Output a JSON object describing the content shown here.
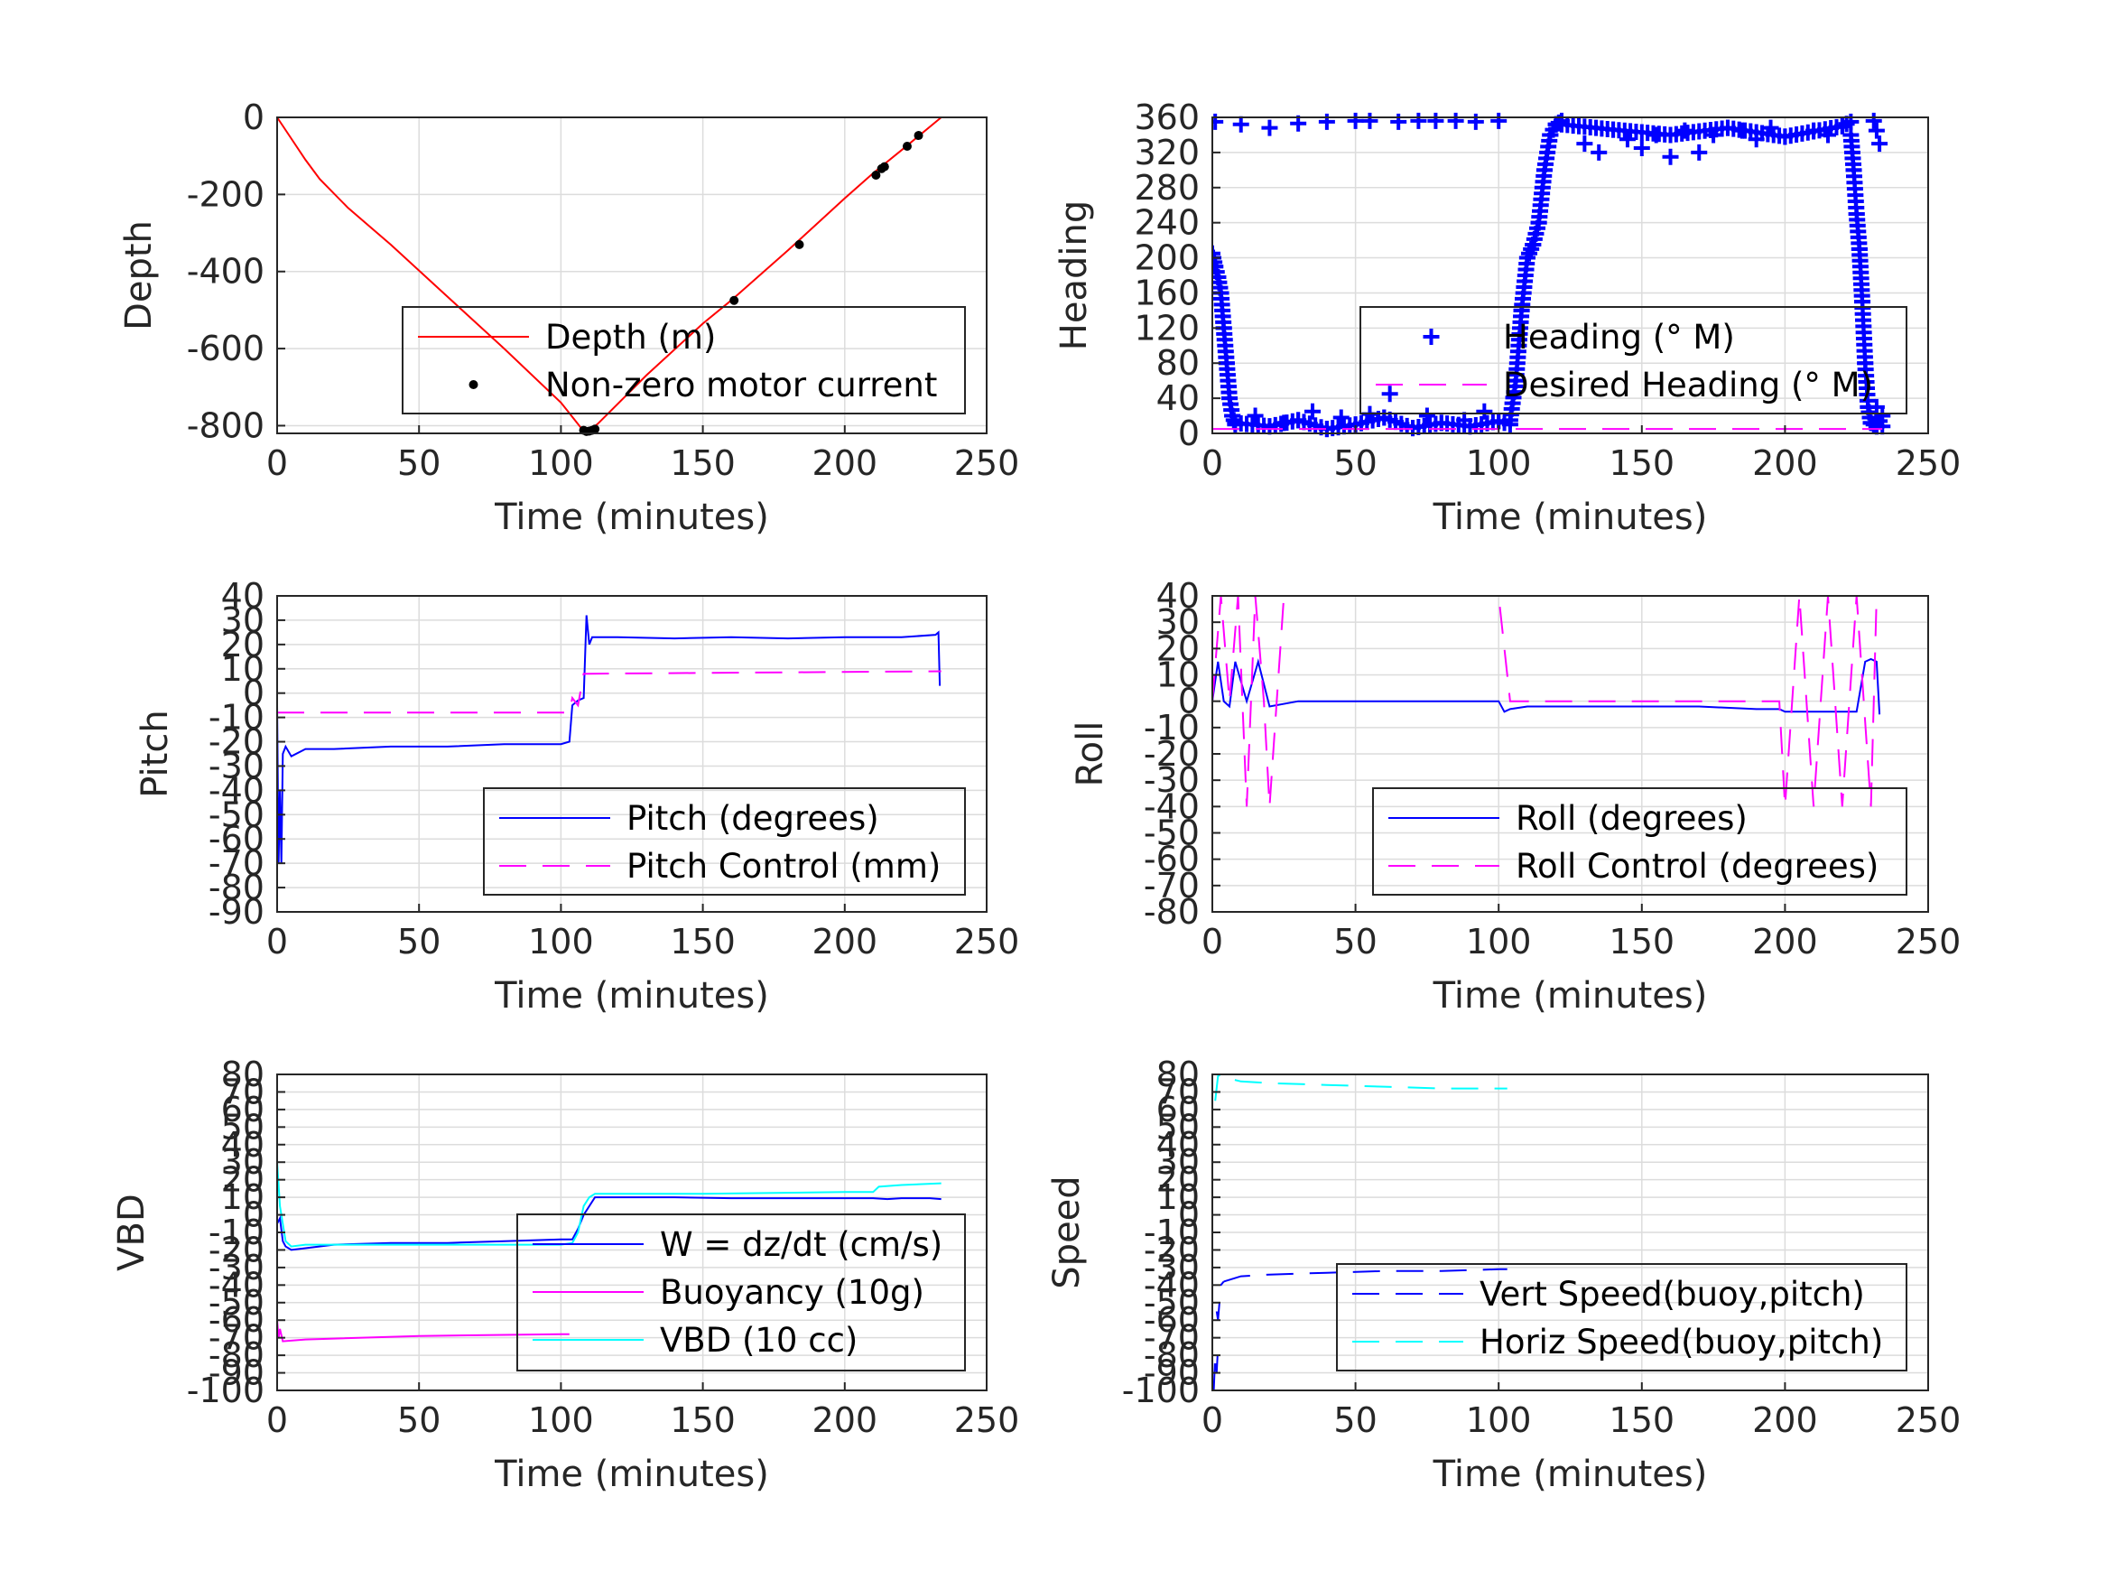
{
  "chart_data": [
    {
      "type": "line",
      "xlabel": "Time (minutes)",
      "ylabel": "Depth",
      "xlim": [
        0,
        250
      ],
      "ylim": [
        -820,
        0
      ],
      "xticks": [
        0,
        50,
        100,
        150,
        200,
        250
      ],
      "yticks": [
        0,
        -200,
        -400,
        -600,
        -800
      ],
      "grid": true,
      "legend_position": "lower-right",
      "series": [
        {
          "name": "Depth (m)",
          "style": "line",
          "color": "#ff0000",
          "x": [
            0,
            5,
            10,
            15,
            25,
            40,
            60,
            80,
            100,
            107,
            110,
            113,
            130,
            150,
            160,
            180,
            200,
            210,
            220,
            234
          ],
          "y": [
            0,
            -55,
            -110,
            -160,
            -235,
            -330,
            -465,
            -600,
            -740,
            -805,
            -815,
            -795,
            -670,
            -535,
            -475,
            -345,
            -210,
            -145,
            -85,
            0
          ]
        },
        {
          "name": "Non-zero motor current",
          "style": "dots",
          "color": "#000000",
          "x": [
            108,
            109,
            110,
            111,
            112,
            161,
            184,
            211,
            213,
            214,
            222,
            226
          ],
          "y": [
            -812,
            -815,
            -814,
            -812,
            -809,
            -475,
            -330,
            -150,
            -133,
            -128,
            -75,
            -47
          ]
        }
      ]
    },
    {
      "type": "scatter",
      "xlabel": "Time (minutes)",
      "ylabel": "Heading",
      "xlim": [
        0,
        250
      ],
      "ylim": [
        0,
        360
      ],
      "xticks": [
        0,
        50,
        100,
        150,
        200,
        250
      ],
      "yticks": [
        0,
        40,
        80,
        120,
        160,
        200,
        240,
        280,
        320,
        360
      ],
      "grid": true,
      "legend_position": "lower-right",
      "series": [
        {
          "name": "Heading (° M)",
          "style": "plus",
          "color": "#0000ff",
          "segments": [
            {
              "x": [
                0,
                1,
                2,
                3,
                4,
                5,
                6,
                7,
                8
              ],
              "y": [
                205,
                190,
                178,
                160,
                120,
                80,
                40,
                20,
                10
              ]
            },
            {
              "x": [
                8,
                20,
                30,
                40,
                50,
                60,
                70,
                80,
                90,
                100,
                104
              ],
              "y": [
                12,
                8,
                15,
                5,
                10,
                18,
                6,
                12,
                8,
                14,
                10
              ]
            },
            {
              "x": [
                104,
                106,
                108,
                110,
                112,
                114,
                116,
                118,
                120,
                122
              ],
              "y": [
                15,
                60,
                140,
                200,
                215,
                240,
                300,
                340,
                352,
                356
              ]
            },
            {
              "x": [
                122,
                140,
                160,
                180,
                200,
                220,
                223
              ],
              "y": [
                352,
                346,
                340,
                348,
                338,
                350,
                355
              ]
            },
            {
              "x": [
                223,
                224,
                225,
                226,
                227,
                228,
                229,
                230
              ],
              "y": [
                340,
                300,
                250,
                210,
                150,
                80,
                30,
                12
              ]
            },
            {
              "x": [
                230,
                232,
                234
              ],
              "y": [
                12,
                8,
                20
              ]
            }
          ],
          "points": [
            {
              "x": [
                1,
                10,
                20,
                30,
                40,
                50,
                55,
                65,
                72,
                78,
                85,
                92,
                100
              ],
              "y": [
                355,
                352,
                348,
                353,
                355,
                356,
                356,
                355,
                356,
                356,
                356,
                355,
                356
              ]
            },
            {
              "x": [
                130,
                135,
                145,
                150,
                155,
                160,
                165,
                170,
                175,
                185,
                190,
                195,
                210,
                215,
                231,
                232,
                233
              ],
              "y": [
                330,
                320,
                335,
                325,
                340,
                315,
                345,
                320,
                340,
                345,
                335,
                348,
                345,
                340,
                356,
                345,
                330
              ]
            },
            {
              "x": [
                15,
                25,
                35,
                45,
                55,
                62,
                75,
                88,
                95,
                232,
                234
              ],
              "y": [
                20,
                12,
                25,
                18,
                22,
                45,
                20,
                15,
                25,
                30,
                8
              ]
            }
          ]
        },
        {
          "name": "Desired Heading (° M)",
          "style": "dashed",
          "color": "#ff00ff",
          "x": [
            0,
            234
          ],
          "y": [
            5,
            5
          ]
        }
      ]
    },
    {
      "type": "line",
      "xlabel": "Time (minutes)",
      "ylabel": "Pitch",
      "xlim": [
        0,
        250
      ],
      "ylim": [
        -90,
        40
      ],
      "xticks": [
        0,
        50,
        100,
        150,
        200,
        250
      ],
      "yticks": [
        40,
        30,
        20,
        10,
        0,
        -10,
        -20,
        -30,
        -40,
        -50,
        -60,
        -70,
        -80,
        -90
      ],
      "grid": true,
      "legend_position": "lower-right",
      "series": [
        {
          "name": "Pitch (degrees)",
          "style": "line",
          "color": "#0000ff",
          "x": [
            0,
            0.5,
            1,
            1.5,
            2,
            3,
            5,
            10,
            20,
            40,
            60,
            80,
            100,
            103,
            104,
            106,
            108,
            109,
            110,
            111,
            120,
            140,
            160,
            180,
            200,
            220,
            232,
            233,
            233.5
          ],
          "y": [
            -5,
            -70,
            -40,
            -70,
            -25,
            -22,
            -26,
            -23,
            -23,
            -22,
            -22,
            -21,
            -21,
            -20,
            -5,
            -3,
            -2,
            32,
            20,
            23,
            23,
            22.5,
            23,
            22.5,
            23,
            23,
            24,
            25,
            3
          ]
        },
        {
          "name": "Pitch Control (mm)",
          "style": "dashed",
          "color": "#ff00ff",
          "x": [
            0,
            103,
            104,
            106,
            108,
            110,
            234
          ],
          "y": [
            -8,
            -8,
            -2,
            -5,
            8,
            8,
            9
          ]
        }
      ]
    },
    {
      "type": "line",
      "xlabel": "Time (minutes)",
      "ylabel": "Roll",
      "xlim": [
        0,
        250
      ],
      "ylim": [
        -80,
        40
      ],
      "xticks": [
        0,
        50,
        100,
        150,
        200,
        250
      ],
      "yticks": [
        40,
        30,
        20,
        10,
        0,
        -10,
        -20,
        -30,
        -40,
        -50,
        -60,
        -70,
        -80
      ],
      "grid": true,
      "legend_position": "lower-right",
      "series": [
        {
          "name": "Roll (degrees)",
          "style": "line",
          "color": "#0000ff",
          "x": [
            0,
            2,
            4,
            6,
            8,
            12,
            16,
            20,
            30,
            50,
            80,
            100,
            102,
            104,
            110,
            130,
            150,
            170,
            190,
            198,
            200,
            210,
            220,
            225,
            228,
            230,
            232,
            233
          ],
          "y": [
            0,
            15,
            0,
            -2,
            15,
            0,
            15,
            -2,
            0,
            0,
            0,
            0,
            -4,
            -3,
            -2,
            -2,
            -2,
            -2,
            -3,
            -3,
            -4,
            -4,
            -4,
            -4,
            15,
            16,
            15,
            -5
          ]
        },
        {
          "name": "Roll Control (degrees)",
          "style": "dashed",
          "color": "#ff00ff",
          "x": [
            0,
            3,
            6,
            9,
            12,
            15,
            18,
            20,
            25,
            40,
            60,
            80,
            100,
            104,
            150,
            198,
            200,
            205,
            210,
            215,
            220,
            225,
            230,
            232
          ],
          "y": [
            0,
            40,
            0,
            40,
            -40,
            40,
            0,
            -40,
            40,
            40,
            40,
            40,
            40,
            0,
            0,
            0,
            -40,
            40,
            -40,
            40,
            -40,
            40,
            -40,
            40
          ]
        }
      ]
    },
    {
      "type": "line",
      "xlabel": "Time (minutes)",
      "ylabel": "VBD",
      "xlim": [
        0,
        250
      ],
      "ylim": [
        -100,
        80
      ],
      "xticks": [
        0,
        50,
        100,
        150,
        200,
        250
      ],
      "yticks": [
        80,
        70,
        60,
        50,
        40,
        30,
        20,
        10,
        0,
        -10,
        -20,
        -30,
        -40,
        -50,
        -60,
        -70,
        -80,
        -90,
        -100
      ],
      "grid": true,
      "legend_position": "lower-right",
      "series": [
        {
          "name": "W = dz/dt (cm/s)",
          "style": "line",
          "color": "#0000ff",
          "x": [
            0,
            1,
            2,
            3,
            5,
            10,
            20,
            40,
            60,
            80,
            100,
            104,
            106,
            108,
            112,
            120,
            140,
            160,
            180,
            200,
            210,
            215,
            220,
            230,
            234
          ],
          "y": [
            -5,
            -2,
            -15,
            -18,
            -20,
            -19,
            -17,
            -16,
            -16,
            -15,
            -14,
            -14,
            -8,
            0,
            10,
            10,
            10,
            9.5,
            9.5,
            9.5,
            9.5,
            9,
            9.5,
            9.5,
            9
          ]
        },
        {
          "name": "Buoyancy (10g)",
          "style": "line",
          "color": "#ff00ff",
          "x": [
            0,
            0.5,
            1,
            2,
            10,
            50,
            100,
            103
          ],
          "y": [
            -60,
            -70,
            -65,
            -72,
            -71,
            -69,
            -68,
            -68
          ]
        },
        {
          "name": "VBD (10 cc)",
          "style": "line",
          "color": "#00ffff",
          "x": [
            0,
            1,
            3,
            5,
            10,
            50,
            100,
            104,
            106,
            108,
            110,
            112,
            150,
            200,
            210,
            212,
            220,
            234
          ],
          "y": [
            30,
            5,
            -15,
            -18,
            -17,
            -17,
            -17,
            -16,
            -10,
            5,
            10,
            12,
            12,
            13,
            13,
            16,
            17,
            18
          ]
        }
      ]
    },
    {
      "type": "line",
      "xlabel": "Time (minutes)",
      "ylabel": "Speed",
      "xlim": [
        0,
        250
      ],
      "ylim": [
        -100,
        80
      ],
      "xticks": [
        0,
        50,
        100,
        150,
        200,
        250
      ],
      "yticks": [
        80,
        70,
        60,
        50,
        40,
        30,
        20,
        10,
        0,
        -10,
        -20,
        -30,
        -40,
        -50,
        -60,
        -70,
        -80,
        -90,
        -100
      ],
      "grid": true,
      "legend_position": "lower-right",
      "series": [
        {
          "name": "Vert Speed(buoy,pitch)",
          "style": "dashed",
          "color": "#0000ff",
          "segments": [
            {
              "x": [
                0.5,
                1,
                1.5,
                2
              ],
              "y": [
                -100,
                -80,
                -90,
                -75
              ]
            },
            {
              "x": [
                1.5,
                2,
                3,
                4
              ],
              "y": [
                -55,
                -60,
                -40,
                -38
              ]
            },
            {
              "x": [
                4,
                10,
                20,
                40,
                60,
                80,
                100,
                103
              ],
              "y": [
                -38,
                -35,
                -34,
                -33,
                -32,
                -32,
                -31,
                -31
              ]
            }
          ]
        },
        {
          "name": "Horiz Speed(buoy,pitch)",
          "style": "dashed",
          "color": "#00ffff",
          "segments": [
            {
              "x": [
                1,
                2,
                3,
                5,
                10,
                20,
                40,
                60,
                80,
                100,
                103
              ],
              "y": [
                65,
                79,
                80,
                78,
                76,
                75,
                74,
                73,
                72,
                72,
                72
              ]
            }
          ]
        }
      ]
    }
  ]
}
